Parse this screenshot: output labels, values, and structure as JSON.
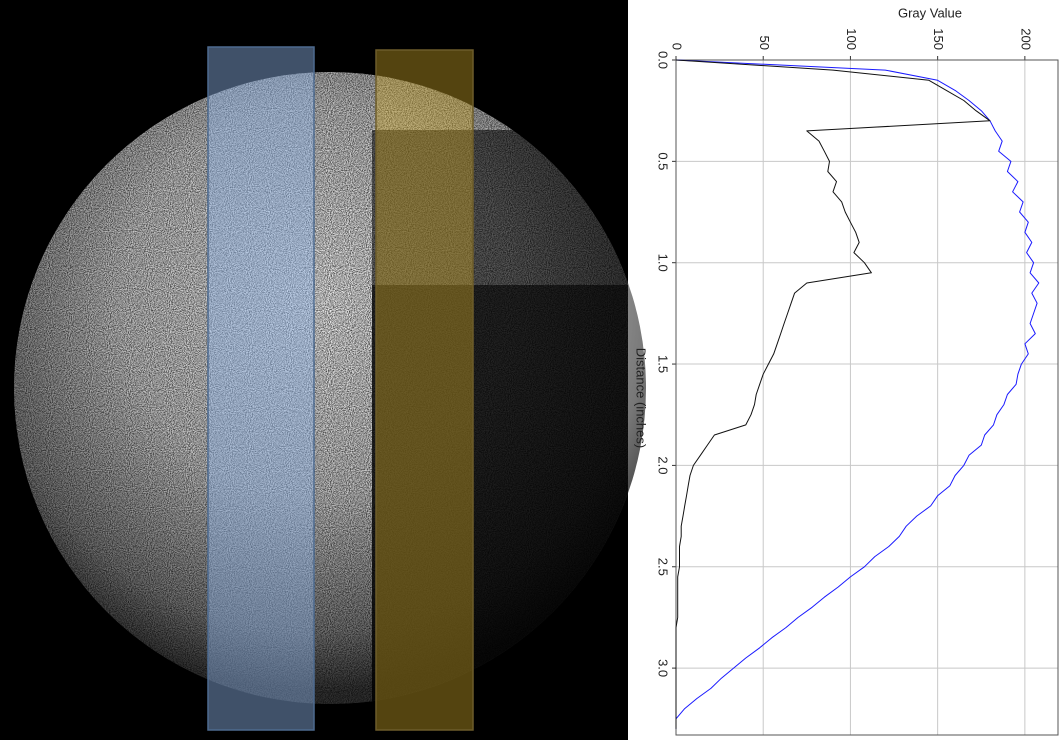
{
  "chart_data": {
    "type": "line",
    "x_label": "Distance (inches)",
    "y_label": "Gray Value",
    "x": [
      0,
      0.05,
      0.1,
      0.15,
      0.2,
      0.25,
      0.3,
      0.35,
      0.4,
      0.45,
      0.5,
      0.55,
      0.6,
      0.65,
      0.7,
      0.75,
      0.8,
      0.85,
      0.9,
      0.95,
      1.0,
      1.05,
      1.1,
      1.15,
      1.2,
      1.25,
      1.3,
      1.35,
      1.4,
      1.45,
      1.5,
      1.55,
      1.6,
      1.65,
      1.7,
      1.75,
      1.8,
      1.85,
      1.9,
      1.95,
      2.0,
      2.05,
      2.1,
      2.15,
      2.2,
      2.25,
      2.3,
      2.35,
      2.4,
      2.45,
      2.5,
      2.55,
      2.6,
      2.65,
      2.7,
      2.75,
      2.8,
      2.85,
      2.9,
      2.95,
      3.0,
      3.05,
      3.1,
      3.15,
      3.2,
      3.25,
      3.3
    ],
    "series": [
      {
        "color": "#1a1aff",
        "values": [
          0,
          120,
          150,
          160,
          168,
          175,
          180,
          183,
          187,
          185,
          192,
          190,
          196,
          193,
          199,
          197,
          202,
          200,
          204,
          201,
          205,
          203,
          208,
          204,
          207,
          205,
          203,
          206,
          200,
          202,
          198,
          196,
          195,
          190,
          188,
          184,
          182,
          177,
          175,
          168,
          165,
          160,
          157,
          150,
          146,
          138,
          132,
          128,
          122,
          114,
          108,
          100,
          93,
          85,
          78,
          70,
          63,
          55,
          48,
          40,
          33,
          26,
          20,
          12,
          5,
          0,
          0
        ]
      },
      {
        "color": "#111111",
        "values": [
          0,
          90,
          145,
          155,
          165,
          172,
          180,
          75,
          82,
          85,
          88,
          87,
          92,
          90,
          95,
          97,
          100,
          103,
          105,
          102,
          108,
          112,
          75,
          68,
          66,
          64,
          62,
          60,
          58,
          56,
          53,
          50,
          48,
          46,
          45,
          43,
          40,
          22,
          18,
          14,
          10,
          8,
          7,
          6,
          5,
          4,
          3,
          3,
          2,
          2,
          2,
          1,
          1,
          1,
          1,
          1,
          0,
          0,
          0,
          0,
          0,
          0,
          0,
          0,
          0,
          0,
          0
        ]
      }
    ],
    "xlim": [
      0,
      3.33
    ],
    "xticks": [
      {
        "value": 0,
        "label": "0.0"
      },
      0.5,
      {
        "value": 1,
        "label": "1.0"
      },
      1.5,
      {
        "value": 2,
        "label": "2.0"
      },
      2.5,
      {
        "value": 3,
        "label": "3.0"
      }
    ],
    "ylim": [
      0,
      219
    ],
    "yticks": [
      0,
      50,
      100,
      150,
      200
    ],
    "grid": true
  }
}
